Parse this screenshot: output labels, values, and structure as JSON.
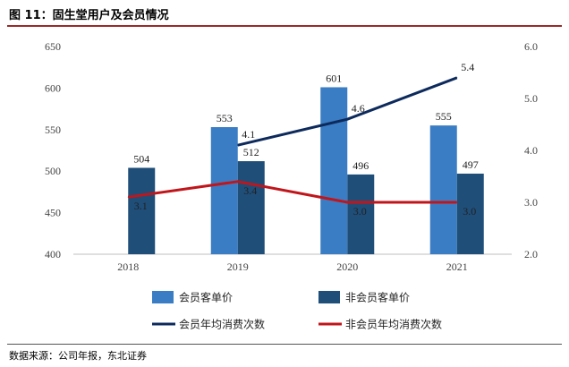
{
  "figure": {
    "title": "图 11：固生堂用户及会员情况",
    "source": "数据来源：公司年报，东北证券"
  },
  "colors": {
    "member_bar": "#3a7dc4",
    "nonmember_bar": "#1f4e79",
    "member_line": "#0d2a5c",
    "nonmember_line": "#c0161b",
    "rule": "#9a2a2a"
  },
  "chart_data": {
    "type": "bar",
    "categories": [
      "2018",
      "2019",
      "2020",
      "2021"
    ],
    "ylim": [
      400,
      650
    ],
    "y_ticks": [
      400,
      450,
      500,
      550,
      600,
      650
    ],
    "y2lim": [
      2.0,
      6.0
    ],
    "y2_ticks": [
      "2.0",
      "3.0",
      "4.0",
      "5.0",
      "6.0"
    ],
    "grid": false,
    "legend_position": "bottom",
    "series": [
      {
        "name": "会员客单价",
        "type": "bar",
        "axis": "left",
        "values": [
          null,
          553,
          601,
          555
        ],
        "labels": [
          "",
          "553",
          "601",
          "555"
        ]
      },
      {
        "name": "非会员客单价",
        "type": "bar",
        "axis": "left",
        "values": [
          504,
          512,
          496,
          497
        ],
        "labels": [
          "504",
          "512",
          "496",
          "497"
        ]
      },
      {
        "name": "会员年均消费次数",
        "type": "line",
        "axis": "right",
        "values": [
          null,
          4.1,
          4.6,
          5.4
        ],
        "labels": [
          "",
          "4.1",
          "4.6",
          "5.4"
        ]
      },
      {
        "name": "非会员年均消费次数",
        "type": "line",
        "axis": "right",
        "values": [
          3.1,
          3.4,
          3.0,
          3.0
        ],
        "labels": [
          "3.1",
          "3.4",
          "3.0",
          "3.0"
        ]
      }
    ]
  }
}
